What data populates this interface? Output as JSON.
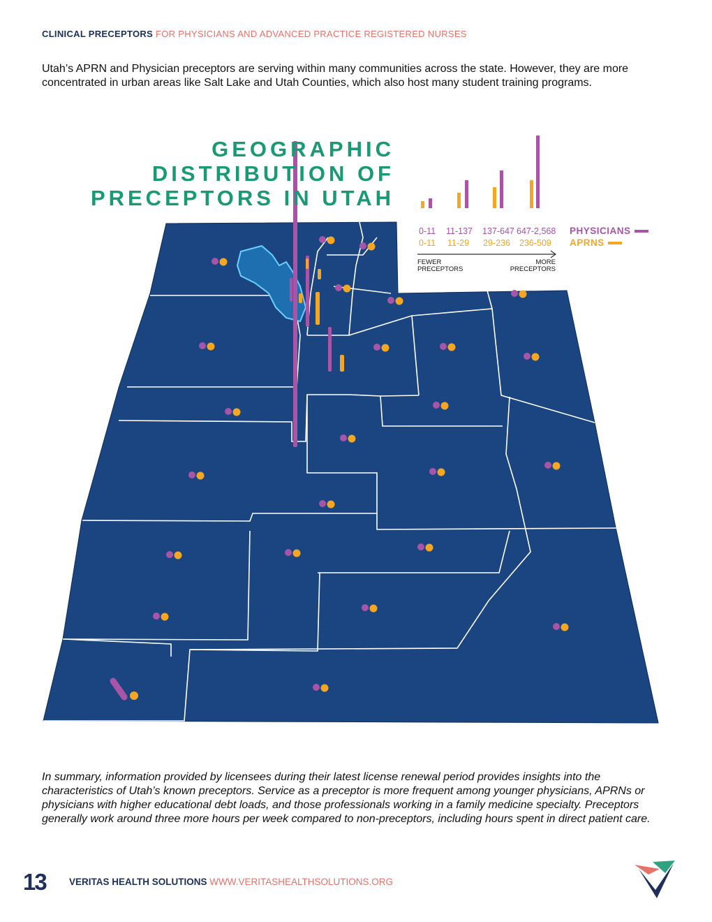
{
  "header": {
    "section": "CLINICAL PRECEPTORS",
    "subtitle": "FOR PHYSICIANS AND ADVANCED PRACTICE REGISTERED NURSES"
  },
  "intro": "Utah’s APRN and Physician preceptors are serving within many communities across the state. However, they are more concentrated in urban areas like Salt Lake and Utah Counties, which also host many student training programs.",
  "map_title": [
    "GEOGRAPHIC",
    "DISTRIBUTION OF",
    "PRECEPTORS IN UTAH"
  ],
  "legend": {
    "physicians_label": "PHYSICIANS",
    "aprns_label": "APRNS",
    "physician_ranges": [
      "0-11",
      "11-137",
      "137-647",
      "647-2,568"
    ],
    "aprn_ranges": [
      "0-11",
      "11-29",
      "29-236",
      "236-509"
    ],
    "fewer": "FEWER PRECEPTORS",
    "more": "MORE PRECEPTORS",
    "colors": {
      "physicians": "#a855a8",
      "aprns": "#f5a623",
      "map": "#1a4580"
    }
  },
  "summary": "In summary, information provided by licensees during their latest license renewal period provides insights into the characteristics of Utah’s known preceptors. Service as a preceptor is more frequent among younger physicians, APRNs or physicians with higher educational debt loads, and those professionals working in a family medicine specialty. Preceptors generally work around three more hours per week compared to non-preceptors, including hours spent in direct patient care.",
  "footer": {
    "page": "13",
    "org": "VERITAS HEALTH SOLUTIONS",
    "url": "WWW.VERITASHEALTHSOLUTIONS.ORG"
  }
}
